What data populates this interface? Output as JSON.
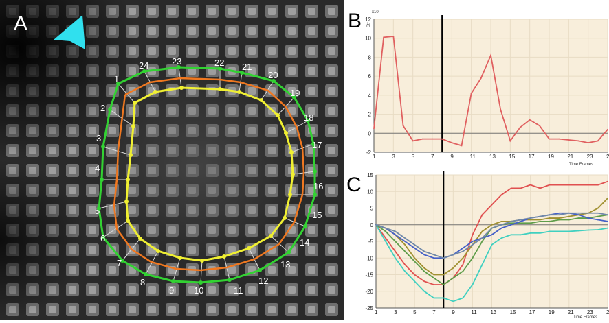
{
  "panel_a": {
    "letter": "A",
    "segment_labels": [
      "1",
      "2",
      "3",
      "4",
      "5",
      "6",
      "7",
      "8",
      "9",
      "10",
      "11",
      "12",
      "13",
      "14",
      "15",
      "16",
      "17",
      "18",
      "19",
      "20",
      "21",
      "22",
      "23",
      "24"
    ],
    "colors": {
      "outer_contour": "#32d232",
      "mid_contour": "#f07820",
      "inner_contour": "#f0f032",
      "arrow": "#30e0ee"
    }
  },
  "panel_b": {
    "letter": "B",
    "exponent_label": "x10",
    "ylabel": "Str",
    "xlabel": "Time Frames",
    "chart_data": {
      "type": "line",
      "x_ticks": [
        1,
        3,
        5,
        7,
        9,
        11,
        13,
        15,
        17,
        19,
        21,
        23,
        25
      ],
      "y_ticks": [
        -2,
        0,
        2,
        4,
        6,
        8,
        10,
        12
      ],
      "xlim": [
        1,
        25
      ],
      "ylim": [
        -2,
        12
      ],
      "marker_frame": 8,
      "series": [
        {
          "color": "#e06060",
          "x": [
            1,
            2,
            3,
            4,
            5,
            6,
            7,
            8,
            9,
            10,
            11,
            12,
            13,
            14,
            15,
            16,
            17,
            18,
            19,
            20,
            21,
            22,
            23,
            24,
            25
          ],
          "y": [
            0.5,
            10.1,
            10.2,
            0.8,
            -0.8,
            -0.6,
            -0.6,
            -0.6,
            -1.0,
            -1.3,
            4.2,
            5.8,
            8.2,
            2.5,
            -0.8,
            0.6,
            1.4,
            0.8,
            -0.6,
            -0.6,
            -0.7,
            -0.8,
            -1.0,
            -0.8,
            0.4
          ]
        }
      ]
    }
  },
  "panel_c": {
    "letter": "C",
    "xlabel": "Time Frames",
    "chart_data": {
      "type": "line",
      "x_ticks": [
        1,
        3,
        5,
        7,
        9,
        11,
        13,
        15,
        17,
        19,
        21,
        23,
        25
      ],
      "y_ticks": [
        -25,
        -20,
        -15,
        -10,
        -5,
        0,
        5,
        10,
        15
      ],
      "xlim": [
        1,
        25
      ],
      "ylim": [
        -25,
        15
      ],
      "marker_frame": 8,
      "series": [
        {
          "color": "#e05050",
          "x": [
            1,
            2,
            3,
            4,
            5,
            6,
            7,
            8,
            9,
            10,
            11,
            12,
            13,
            14,
            15,
            16,
            17,
            18,
            19,
            20,
            21,
            22,
            23,
            24,
            25
          ],
          "y": [
            0,
            -4,
            -8,
            -12,
            -15,
            -17,
            -18,
            -18,
            -16,
            -12,
            -3,
            3,
            6,
            9,
            11,
            11,
            12,
            11,
            12,
            12,
            12,
            12,
            12,
            12,
            13
          ]
        },
        {
          "color": "#40d0c0",
          "x": [
            1,
            2,
            3,
            4,
            5,
            6,
            7,
            8,
            9,
            10,
            11,
            12,
            13,
            14,
            15,
            16,
            17,
            18,
            19,
            20,
            21,
            22,
            23,
            24,
            25
          ],
          "y": [
            0,
            -5,
            -10,
            -14,
            -17,
            -20,
            -22,
            -22,
            -23,
            -22,
            -18,
            -12,
            -6,
            -4,
            -3,
            -3,
            -2.5,
            -2.5,
            -2,
            -2,
            -2,
            -1.8,
            -1.6,
            -1.5,
            -1
          ]
        },
        {
          "color": "#5f9d4a",
          "x": [
            1,
            2,
            3,
            4,
            5,
            6,
            7,
            8,
            9,
            10,
            11,
            12,
            13,
            14,
            15,
            16,
            17,
            18,
            19,
            20,
            21,
            22,
            23,
            24,
            25
          ],
          "y": [
            0,
            -2,
            -5,
            -8,
            -11,
            -14,
            -16,
            -18,
            -16,
            -14,
            -10,
            -5,
            -1,
            0,
            0.5,
            0.5,
            0.5,
            1,
            1,
            1.5,
            1.5,
            2,
            2,
            2.5,
            3
          ]
        },
        {
          "color": "#a09030",
          "x": [
            1,
            2,
            3,
            4,
            5,
            6,
            7,
            8,
            9,
            10,
            11,
            12,
            13,
            14,
            15,
            16,
            17,
            18,
            19,
            20,
            21,
            22,
            23,
            24,
            25
          ],
          "y": [
            0,
            -1,
            -3,
            -6,
            -10,
            -13,
            -15,
            -15,
            -13,
            -10,
            -6,
            -2,
            0,
            1,
            1,
            1.5,
            1.5,
            1.5,
            2,
            2,
            2.5,
            3,
            3.5,
            5,
            8
          ]
        },
        {
          "color": "#4560c8",
          "x": [
            1,
            2,
            3,
            4,
            5,
            6,
            7,
            8,
            9,
            10,
            11,
            12,
            13,
            14,
            15,
            16,
            17,
            18,
            19,
            20,
            21,
            22,
            23,
            24,
            25
          ],
          "y": [
            0,
            -1,
            -3,
            -5,
            -7,
            -9,
            -10,
            -10,
            -9,
            -7,
            -5,
            -4,
            -3,
            -1,
            0,
            1,
            2,
            2.5,
            3,
            3.5,
            3.5,
            3,
            2,
            1.5,
            1
          ]
        },
        {
          "color": "#7088a8",
          "x": [
            1,
            2,
            3,
            4,
            5,
            6,
            7,
            8,
            9,
            10,
            11,
            12,
            13,
            14,
            15,
            16,
            17,
            18,
            19,
            20,
            21,
            22,
            23,
            24,
            25
          ],
          "y": [
            0,
            -1,
            -2,
            -4,
            -6,
            -8,
            -9,
            -10,
            -9,
            -8,
            -6,
            -4,
            -1,
            0,
            1,
            1.5,
            2,
            2.5,
            3,
            3,
            3.5,
            3.5,
            3.5,
            3.5,
            3
          ]
        }
      ]
    }
  }
}
